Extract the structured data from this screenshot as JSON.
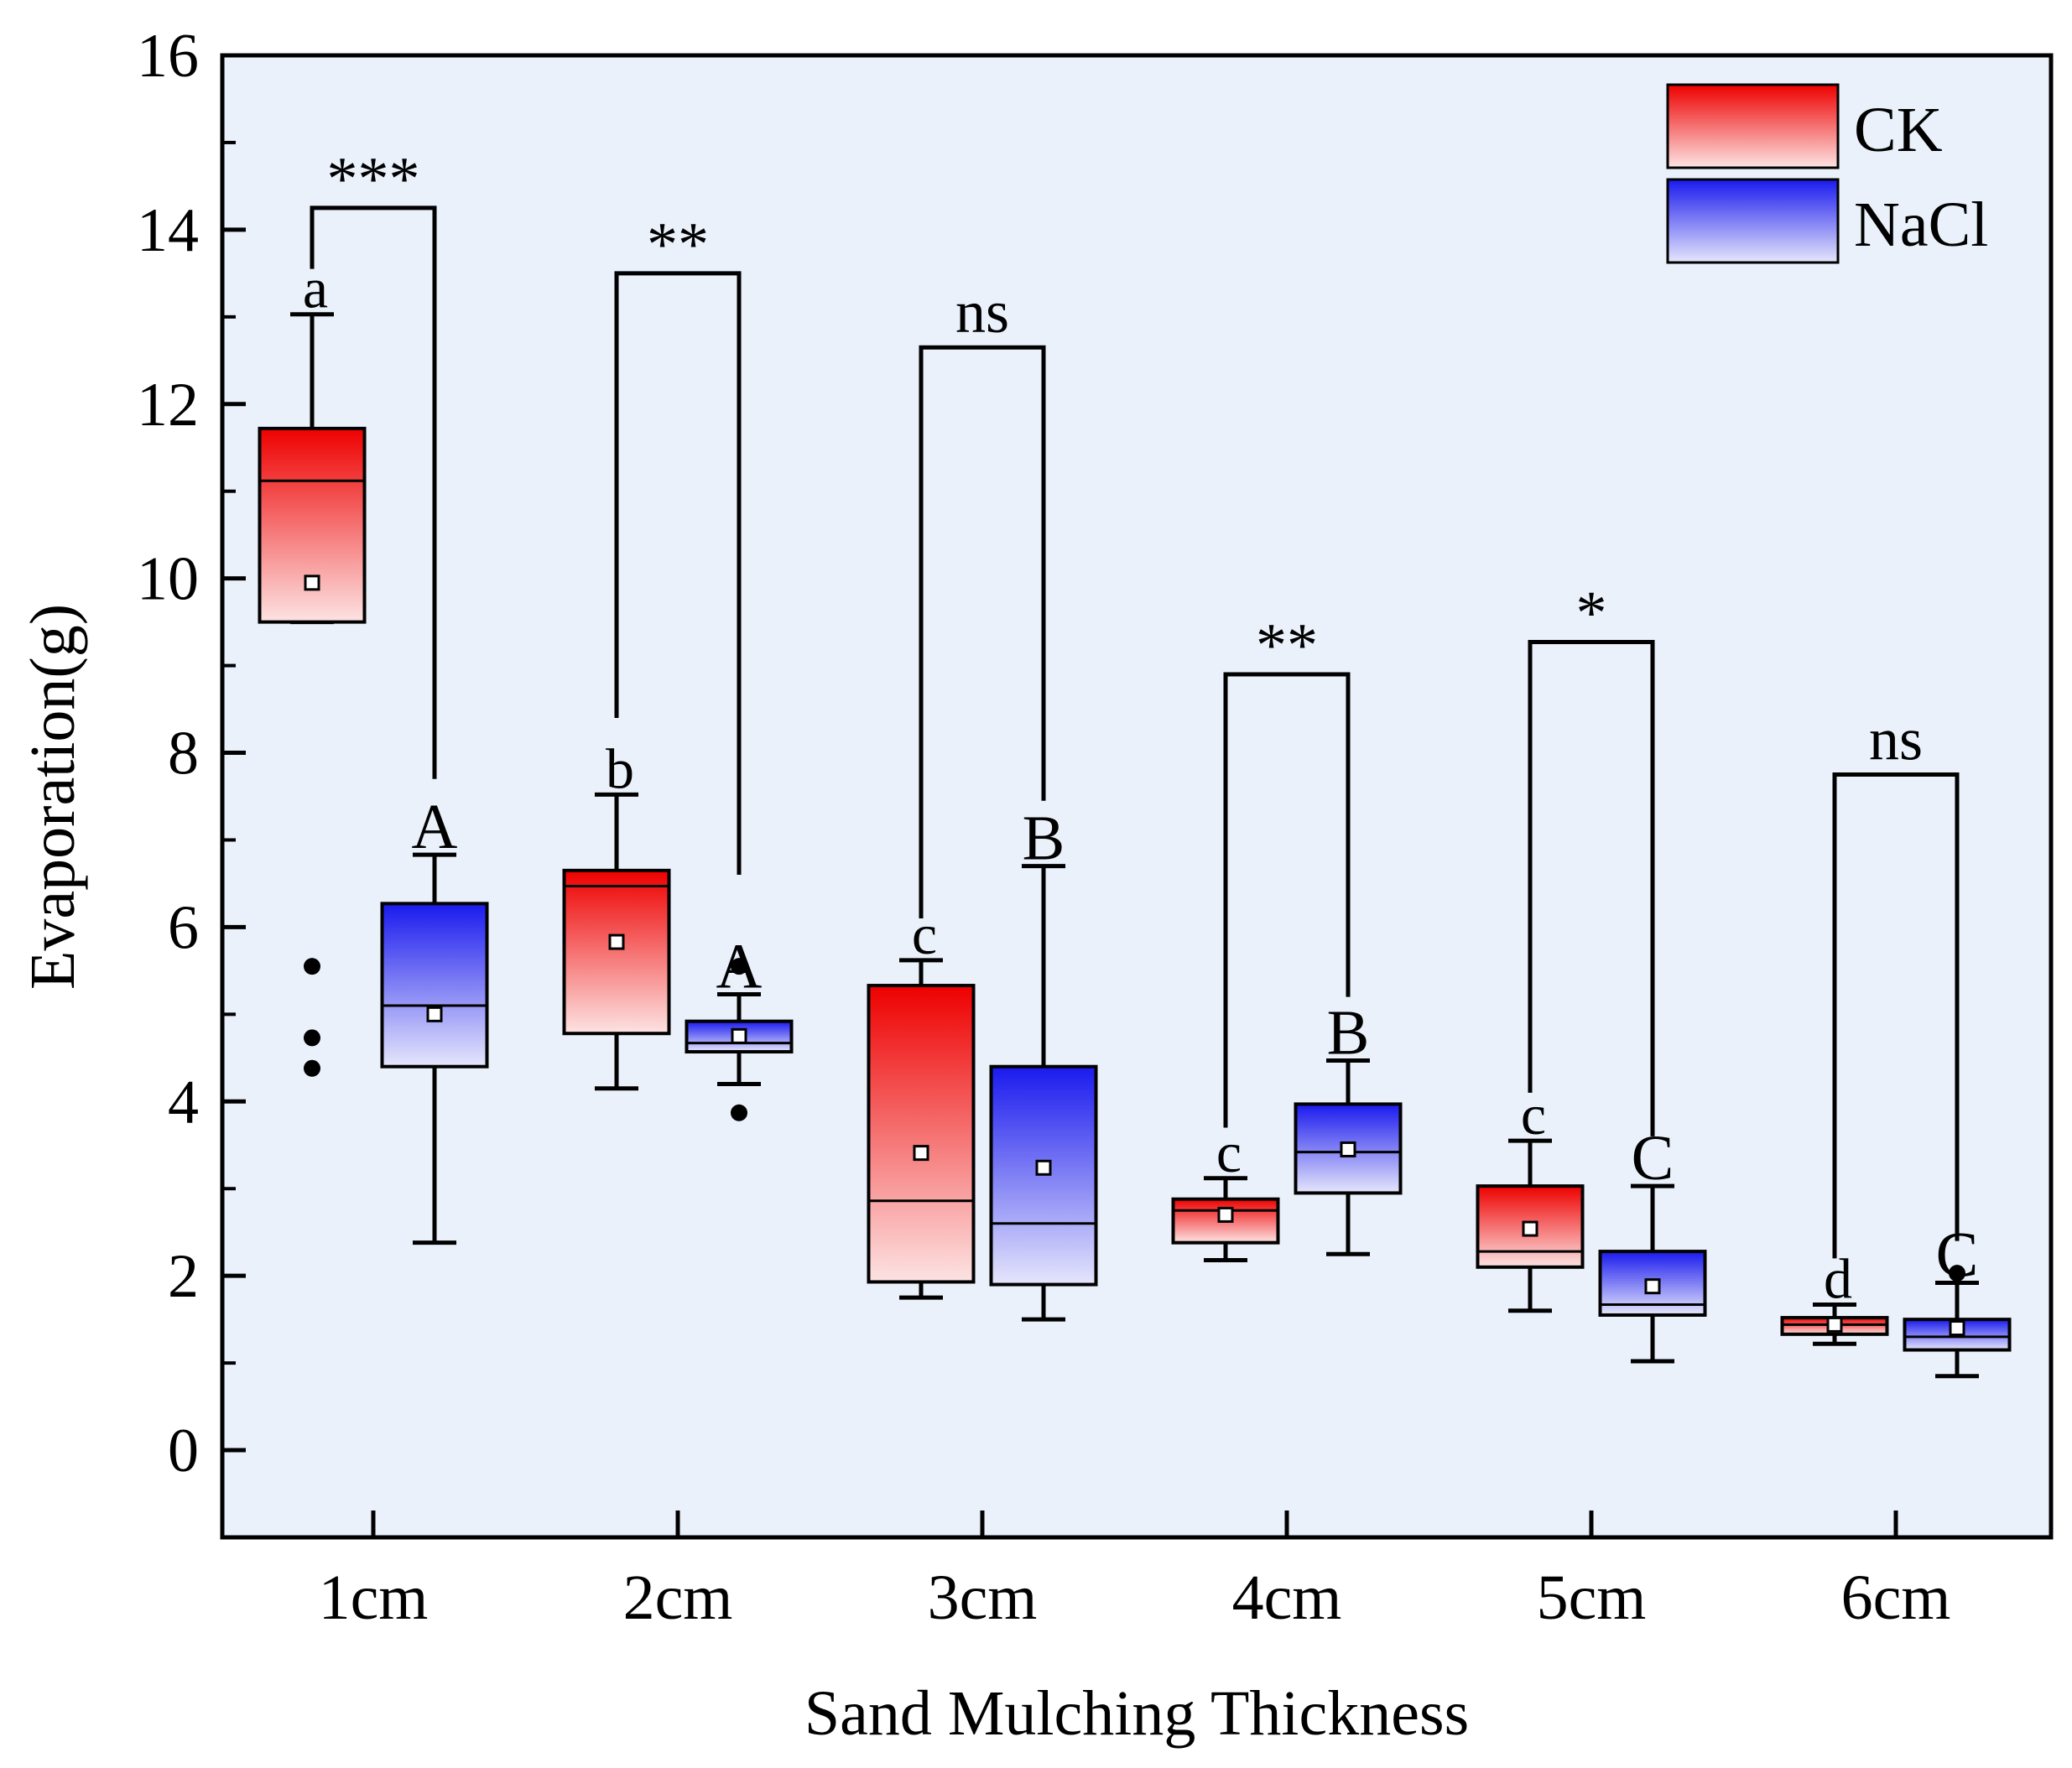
{
  "chart_data": {
    "type": "box",
    "xlabel": "Sand Mulching Thickness",
    "ylabel": "Evaporation(g)",
    "ylim": [
      -1,
      16
    ],
    "yticks": [
      0,
      2,
      4,
      6,
      8,
      10,
      12,
      14,
      16
    ],
    "categories": [
      "1cm",
      "2cm",
      "3cm",
      "4cm",
      "5cm",
      "6cm"
    ],
    "colors": {
      "background": "#eaf1fb",
      "ck_dark": "#ee0000",
      "ck_light": "#fde3e3",
      "nacl_dark": "#1a1aee",
      "nacl_light": "#e6e6fc"
    },
    "legend": {
      "position": "top-right",
      "entries": [
        {
          "series": "CK",
          "label": "CK"
        },
        {
          "series": "NaCl",
          "label": "NaCl"
        }
      ]
    },
    "series": [
      {
        "name": "CK",
        "boxes": [
          {
            "q1": 9.5,
            "median": 11.12,
            "q3": 11.72,
            "whisker_low": 9.5,
            "whisker_high": 13.03,
            "mean": 9.95,
            "outliers": [
              5.55,
              4.73,
              4.38
            ],
            "letter": "a"
          },
          {
            "q1": 4.78,
            "median": 6.47,
            "q3": 6.65,
            "whisker_low": 4.15,
            "whisker_high": 7.52,
            "mean": 5.83,
            "outliers": [],
            "letter": "b"
          },
          {
            "q1": 1.93,
            "median": 2.86,
            "q3": 5.33,
            "whisker_low": 1.75,
            "whisker_high": 5.62,
            "mean": 3.41,
            "outliers": [],
            "letter": "c"
          },
          {
            "q1": 2.38,
            "median": 2.75,
            "q3": 2.88,
            "whisker_low": 2.18,
            "whisker_high": 3.12,
            "mean": 2.7,
            "outliers": [],
            "letter": "c"
          },
          {
            "q1": 2.1,
            "median": 2.28,
            "q3": 3.03,
            "whisker_low": 1.6,
            "whisker_high": 3.55,
            "mean": 2.54,
            "outliers": [],
            "letter": "c"
          },
          {
            "q1": 1.33,
            "median": 1.44,
            "q3": 1.52,
            "whisker_low": 1.22,
            "whisker_high": 1.67,
            "mean": 1.44,
            "outliers": [],
            "letter": "d"
          }
        ]
      },
      {
        "name": "NaCl",
        "boxes": [
          {
            "q1": 4.4,
            "median": 5.1,
            "q3": 6.27,
            "whisker_low": 2.38,
            "whisker_high": 6.83,
            "mean": 5.0,
            "outliers": [],
            "letter": "A"
          },
          {
            "q1": 4.57,
            "median": 4.67,
            "q3": 4.92,
            "whisker_low": 4.2,
            "whisker_high": 5.23,
            "mean": 4.75,
            "outliers": [
              5.55,
              3.87
            ],
            "letter": "A"
          },
          {
            "q1": 1.9,
            "median": 2.6,
            "q3": 4.4,
            "whisker_low": 1.5,
            "whisker_high": 6.7,
            "mean": 3.24,
            "outliers": [],
            "letter": "B"
          },
          {
            "q1": 2.95,
            "median": 3.42,
            "q3": 3.97,
            "whisker_low": 2.25,
            "whisker_high": 4.47,
            "mean": 3.45,
            "outliers": [],
            "letter": "B"
          },
          {
            "q1": 1.55,
            "median": 1.67,
            "q3": 2.28,
            "whisker_low": 1.02,
            "whisker_high": 3.03,
            "mean": 1.88,
            "outliers": [],
            "letter": "C"
          },
          {
            "q1": 1.15,
            "median": 1.3,
            "q3": 1.5,
            "whisker_low": 0.85,
            "whisker_high": 1.92,
            "mean": 1.4,
            "outliers": [
              2.03
            ],
            "letter": "C"
          }
        ]
      }
    ],
    "significance": [
      {
        "label": "***",
        "bracket_y": 14.25,
        "ck_drop": 13.55,
        "nacl_drop": 7.7
      },
      {
        "label": "**",
        "bracket_y": 13.5,
        "ck_drop": 8.4,
        "nacl_drop": 6.6
      },
      {
        "label": "ns",
        "bracket_y": 12.65,
        "ck_drop": 6.1,
        "nacl_drop": 7.45
      },
      {
        "label": "**",
        "bracket_y": 8.9,
        "ck_drop": 3.7,
        "nacl_drop": 5.2
      },
      {
        "label": "*",
        "bracket_y": 9.27,
        "ck_drop": 4.1,
        "nacl_drop": 3.6
      },
      {
        "label": "ns",
        "bracket_y": 7.75,
        "ck_drop": 2.2,
        "nacl_drop": 2.4
      }
    ]
  }
}
